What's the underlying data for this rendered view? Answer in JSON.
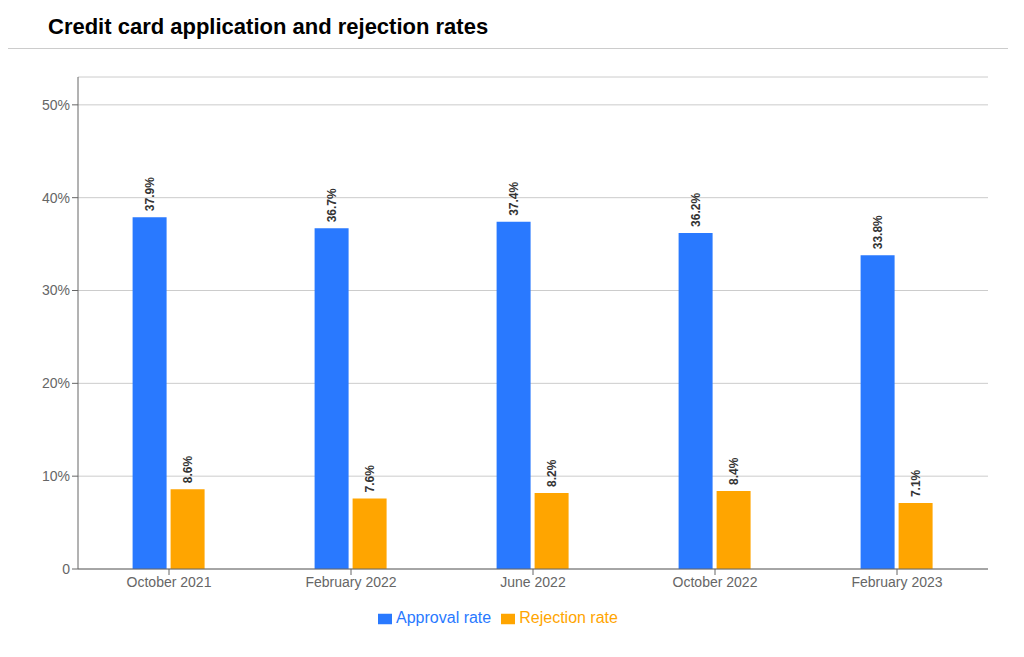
{
  "chart_data": {
    "type": "bar",
    "title": "Credit card application and rejection rates",
    "categories": [
      "October 2021",
      "February 2022",
      "June 2022",
      "October 2022",
      "February 2023"
    ],
    "series": [
      {
        "name": "Approval rate",
        "color": "#2979FF",
        "values": [
          37.9,
          36.7,
          37.4,
          36.2,
          33.8
        ],
        "value_labels": [
          "37.9%",
          "36.7%",
          "37.4%",
          "36.2%",
          "33.8%"
        ]
      },
      {
        "name": "Rejection rate",
        "color": "#FFA500",
        "values": [
          8.6,
          7.6,
          8.2,
          8.4,
          7.1
        ],
        "value_labels": [
          "8.6%",
          "7.6%",
          "8.2%",
          "8.4%",
          "7.1%"
        ]
      }
    ],
    "ylim": [
      0,
      53
    ],
    "yticks": [
      0,
      {
        "value": 10,
        "label": "10%"
      },
      {
        "value": 20,
        "label": "20%"
      },
      {
        "value": 30,
        "label": "30%"
      },
      {
        "value": 40,
        "label": "40%"
      },
      {
        "value": 50,
        "label": "50%"
      }
    ],
    "grid": true,
    "data_labels": true,
    "legend": "bottom"
  }
}
